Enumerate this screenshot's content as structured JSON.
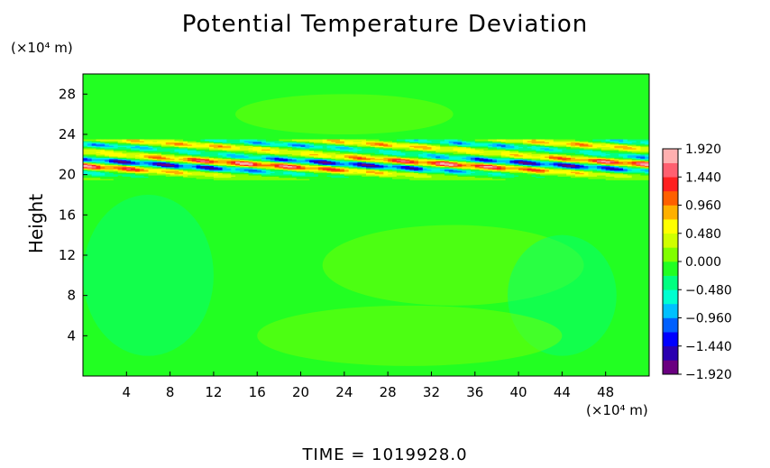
{
  "chart_data": {
    "type": "heatmap",
    "title": "Potential Temperature Deviation",
    "xlabel": "",
    "ylabel": "Height",
    "x_unit": "(×10⁴ m)",
    "y_unit": "(×10⁴ m)",
    "xlim": [
      0,
      52
    ],
    "ylim": [
      0,
      30
    ],
    "x_ticks": [
      4,
      8,
      12,
      16,
      20,
      24,
      28,
      32,
      36,
      40,
      44,
      48
    ],
    "y_ticks": [
      4,
      8,
      12,
      16,
      20,
      24,
      28
    ],
    "x_tick_labels": [
      "4",
      "8",
      "12",
      "16",
      "20",
      "24",
      "28",
      "32",
      "36",
      "40",
      "44",
      "48"
    ],
    "y_tick_labels": [
      "4",
      "8",
      "12",
      "16",
      "20",
      "24",
      "28"
    ],
    "colorbar": {
      "values": [
        1.92,
        1.44,
        0.96,
        0.48,
        0.0,
        -0.48,
        -0.96,
        -1.44,
        -1.92
      ],
      "labels": [
        "1.920",
        "1.440",
        "0.960",
        "0.480",
        "0.000",
        "−0.480",
        "−0.960",
        "−1.440",
        "−1.920"
      ],
      "range": [
        -1.92,
        1.92
      ],
      "placement": "right"
    },
    "background_value": 0.0,
    "band": {
      "y_range": [
        19.5,
        23.5
      ],
      "description_values": "oscillating ±1.92 near height 20–22"
    },
    "colors": {
      "background": "#22ff22",
      "palette": [
        "#6a0080",
        "#2a00b0",
        "#0000ff",
        "#0060ff",
        "#00c0ff",
        "#00ffd0",
        "#00ff80",
        "#22ff22",
        "#80ff00",
        "#d0ff00",
        "#ffff00",
        "#ffb000",
        "#ff6000",
        "#ff2020",
        "#ff6070",
        "#ffb0b0"
      ]
    }
  },
  "footer": {
    "time_label": "TIME  =  1019928.0"
  }
}
